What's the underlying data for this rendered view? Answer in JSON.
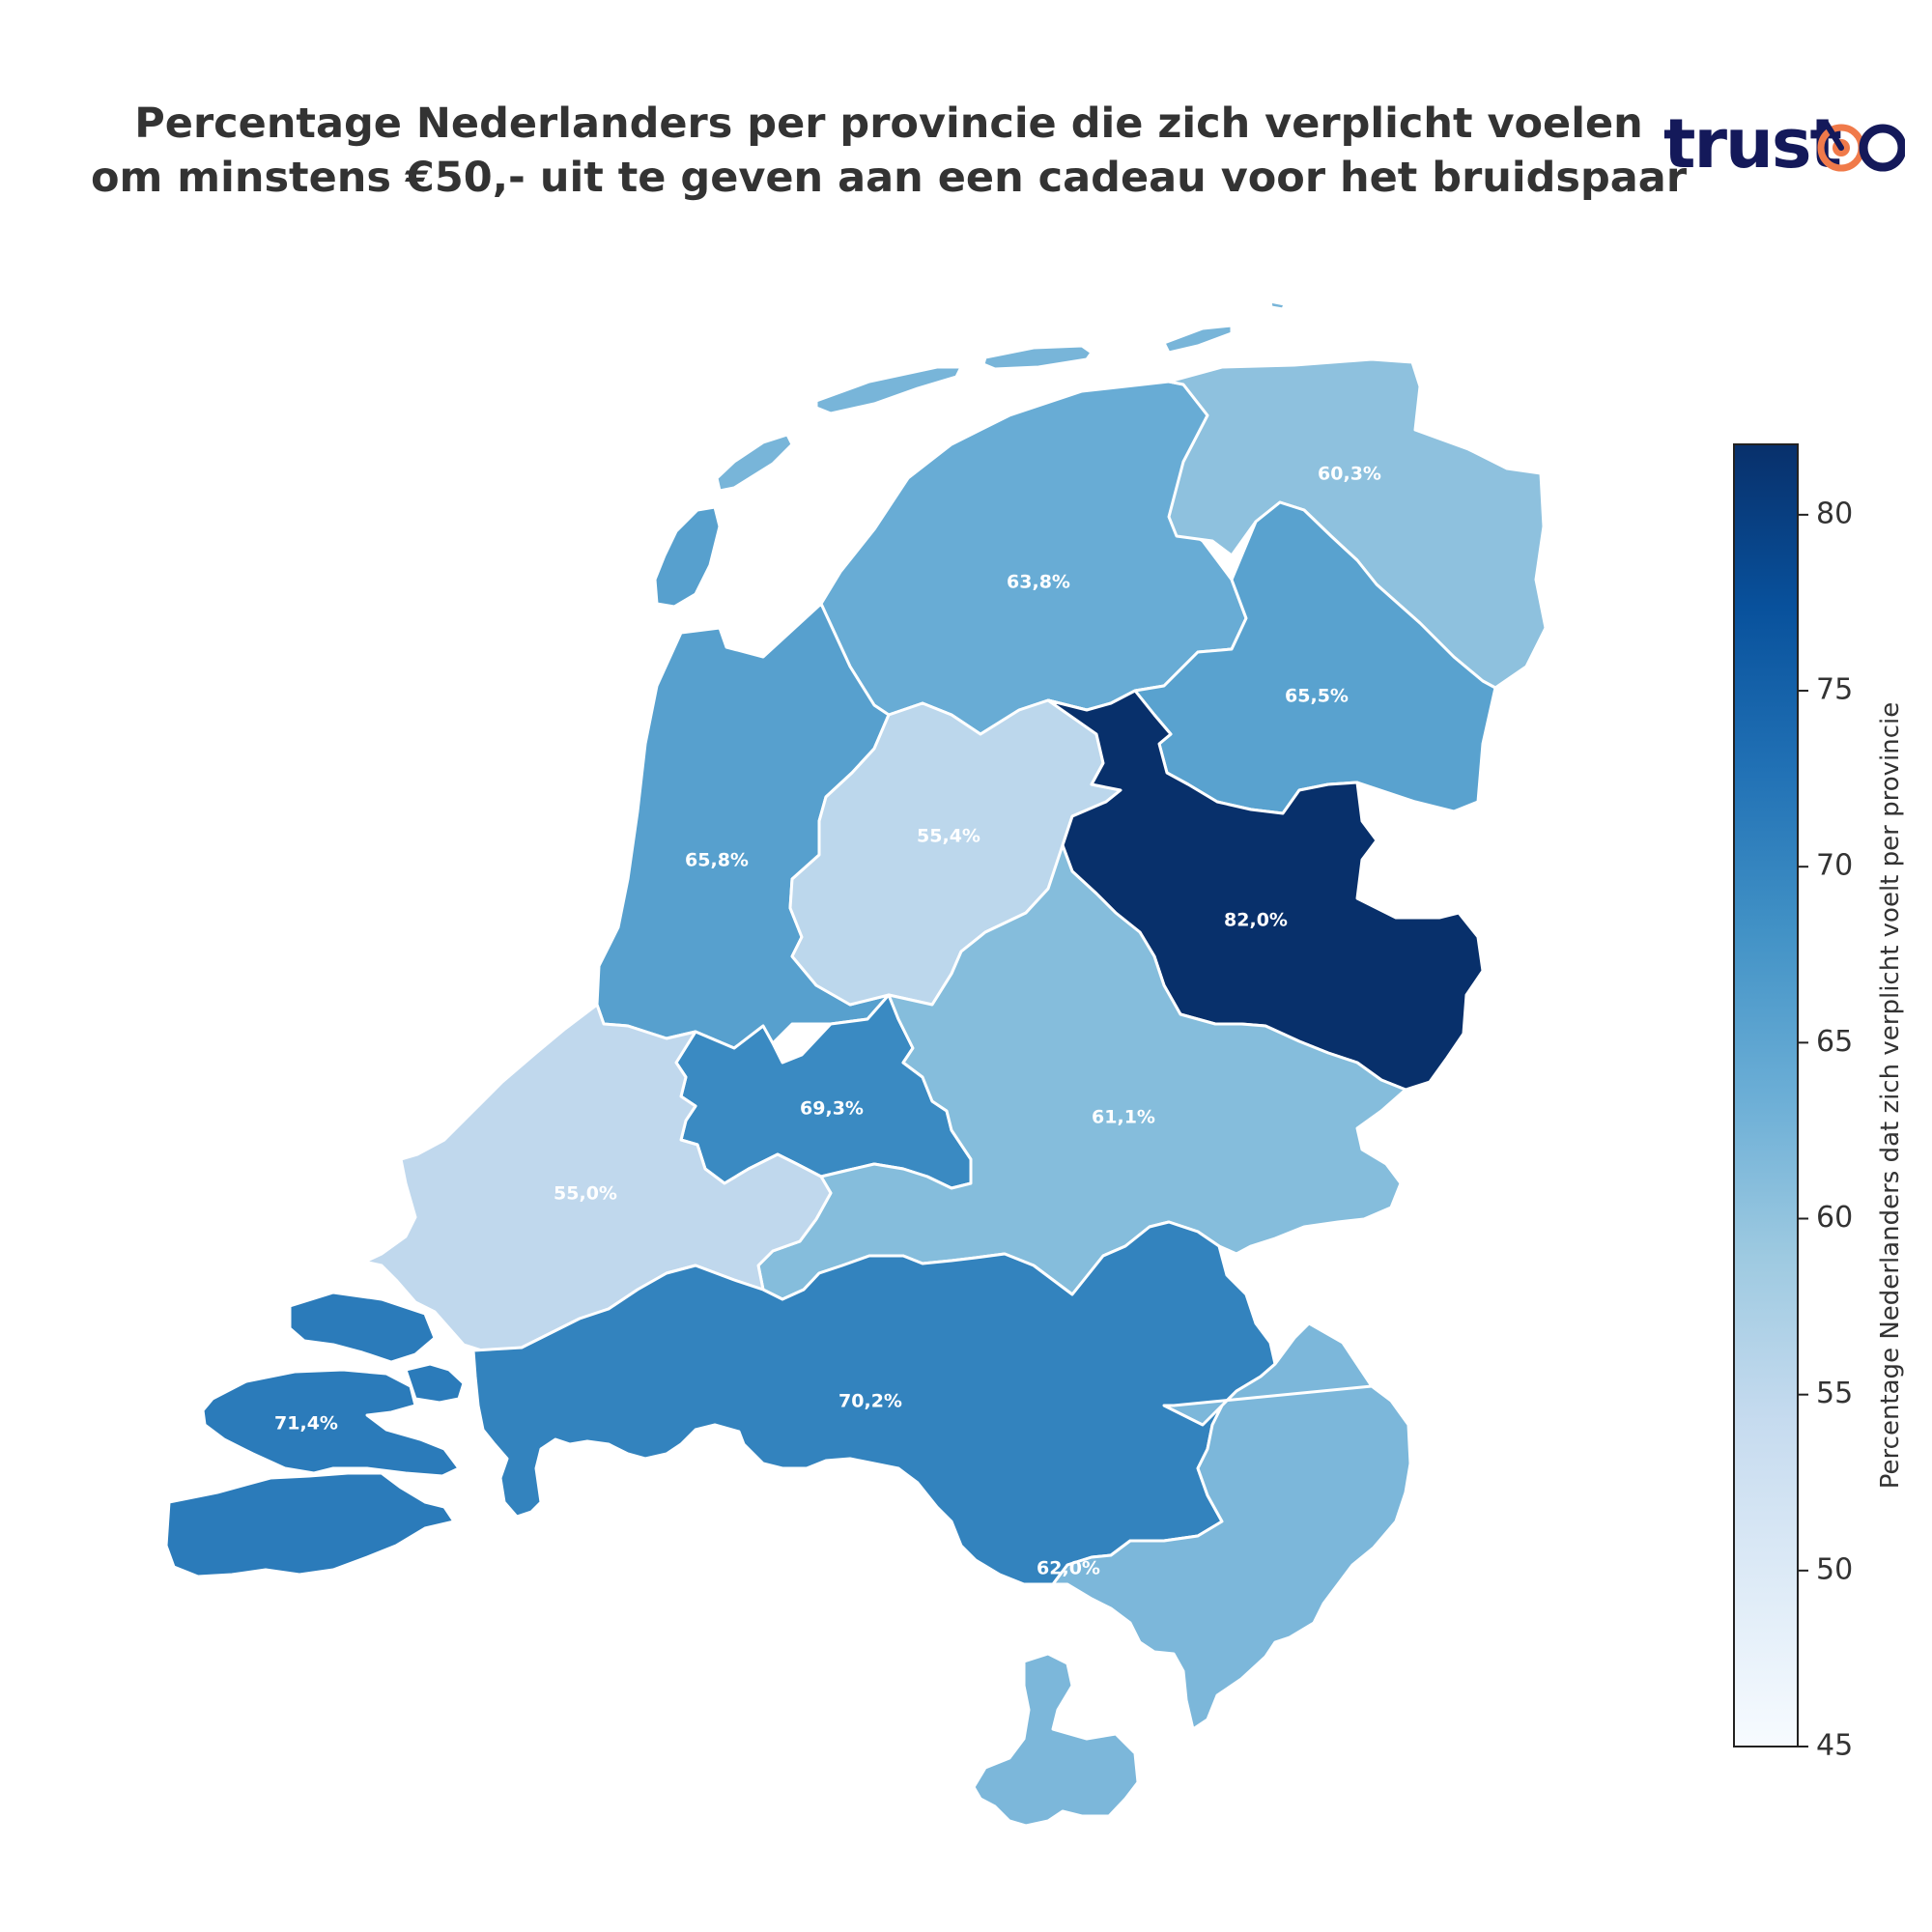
{
  "title": {
    "line1": "Percentage Nederlanders per provincie die zich verplicht voelen",
    "line2": "om minstens €50,- uit te geven aan een cadeau voor het bruidspaar"
  },
  "logo": {
    "text": "trustoo",
    "text_color": "#14195a",
    "accent_color": "#f07a4a"
  },
  "chart_data": {
    "type": "choropleth",
    "regions": [
      {
        "name": "Friesland",
        "value": 63.8,
        "label": "63,8%"
      },
      {
        "name": "Groningen",
        "value": 60.3,
        "label": "60,3%"
      },
      {
        "name": "Drenthe",
        "value": 65.5,
        "label": "65,5%"
      },
      {
        "name": "Noord-Holland",
        "value": 65.8,
        "label": "65,8%"
      },
      {
        "name": "Flevoland",
        "value": 55.4,
        "label": "55,4%"
      },
      {
        "name": "Overijssel",
        "value": 82.0,
        "label": "82,0%"
      },
      {
        "name": "Utrecht",
        "value": 69.3,
        "label": "69,3%"
      },
      {
        "name": "Gelderland",
        "value": 61.1,
        "label": "61,1%"
      },
      {
        "name": "Zuid-Holland",
        "value": 55.0,
        "label": "55,0%"
      },
      {
        "name": "Zeeland",
        "value": 71.4,
        "label": "71,4%"
      },
      {
        "name": "Noord-Brabant",
        "value": 70.2,
        "label": "70,2%"
      },
      {
        "name": "Limburg",
        "value": 62.0,
        "label": "62,0%"
      }
    ],
    "colorbar": {
      "label": "Percentage Nederlanders dat zich verplicht voelt per provincie",
      "min": 45,
      "max": 82,
      "ticks": [
        45,
        50,
        55,
        60,
        65,
        70,
        75,
        80
      ],
      "colormap": "Blues",
      "colors": [
        "#f7fbff",
        "#deebf7",
        "#c6dbef",
        "#9ecae1",
        "#6baed6",
        "#4292c6",
        "#2171b5",
        "#08519c",
        "#08306b"
      ]
    }
  }
}
